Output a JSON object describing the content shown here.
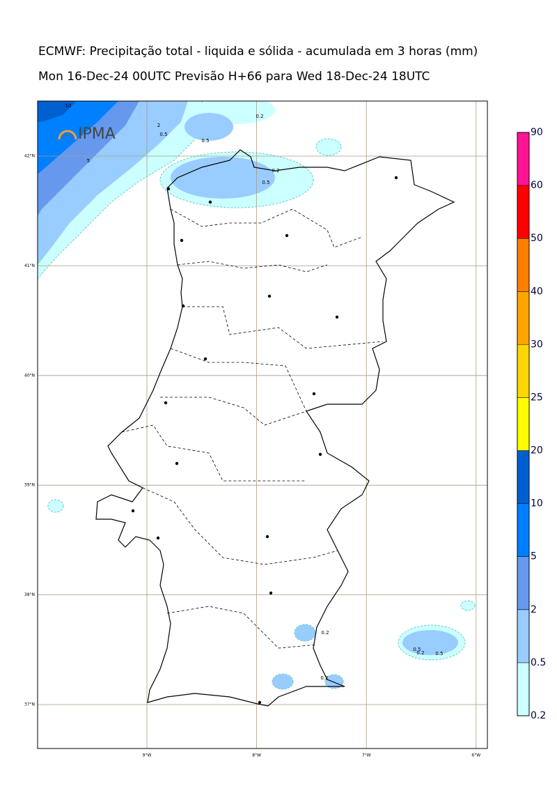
{
  "header": {
    "title": "ECMWF: Precipitação total - liquida e sólida - acumulada em 3 horas (mm)",
    "subtitle": "Mon 16-Dec-24 00UTC Previsão H+66 para Wed 18-Dec-24 18UTC"
  },
  "logo": {
    "text": "IPMA"
  },
  "map": {
    "lon_labels": [
      "9°W",
      "8°W",
      "7°W",
      "6°W"
    ],
    "lat_labels": [
      "42°N",
      "41°N",
      "40°N",
      "39°N",
      "38°N",
      "37°N"
    ],
    "contour_labels": [
      "10",
      "5",
      "2",
      "0.5",
      "0.5",
      "0.2",
      "0.5",
      "0.2",
      "0.2",
      "0.2",
      "0.5",
      "0.2",
      "0.5"
    ]
  },
  "legend": {
    "labels": [
      "0.2",
      "0.5",
      "2",
      "5",
      "10",
      "20",
      "25",
      "30",
      "40",
      "50",
      "60",
      "90"
    ],
    "colors": [
      "#ccffff",
      "#99ccff",
      "#6699ee",
      "#0080ff",
      "#0060d0",
      "#ffff00",
      "#ffd700",
      "#ffa500",
      "#ff7f00",
      "#ff0000",
      "#ff1493"
    ]
  }
}
